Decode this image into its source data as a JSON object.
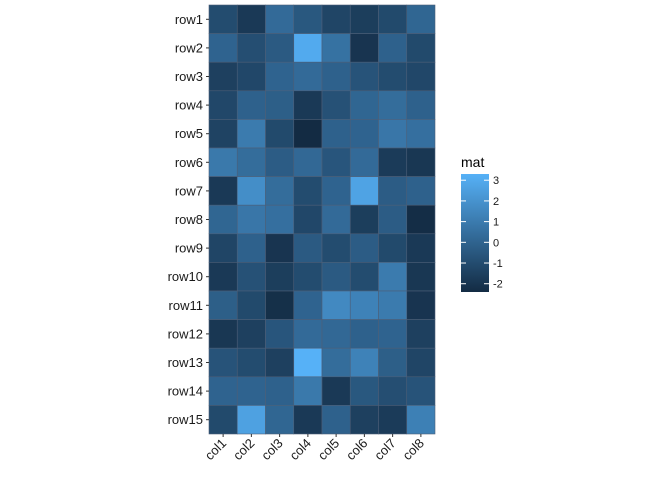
{
  "chart_data": {
    "type": "heatmap",
    "rows": [
      "row1",
      "row2",
      "row3",
      "row4",
      "row5",
      "row6",
      "row7",
      "row8",
      "row9",
      "row10",
      "row11",
      "row12",
      "row13",
      "row14",
      "row15"
    ],
    "columns": [
      "col1",
      "col2",
      "col3",
      "col4",
      "col5",
      "col6",
      "col7",
      "col8"
    ],
    "values": [
      [
        -1.0,
        -1.8,
        0.3,
        -0.5,
        -1.3,
        -1.6,
        -1.1,
        0.1
      ],
      [
        0.0,
        -0.9,
        -0.4,
        3.0,
        0.6,
        -2.0,
        -0.1,
        -1.1
      ],
      [
        -1.5,
        -1.2,
        0.0,
        0.3,
        -0.1,
        -0.7,
        -1.0,
        -1.2
      ],
      [
        -1.2,
        -0.1,
        -0.2,
        -1.8,
        -0.8,
        0.1,
        0.4,
        -0.1
      ],
      [
        -1.4,
        1.0,
        -1.1,
        -2.4,
        -0.1,
        0.0,
        0.8,
        0.5
      ],
      [
        0.9,
        0.4,
        -0.3,
        0.2,
        -0.6,
        0.3,
        -1.7,
        -1.9
      ],
      [
        -1.8,
        1.8,
        0.4,
        -1.0,
        0.0,
        2.7,
        -0.3,
        -0.1
      ],
      [
        0.1,
        0.8,
        0.5,
        -1.2,
        0.3,
        -1.6,
        -0.3,
        -2.3
      ],
      [
        -1.3,
        -0.1,
        -2.0,
        -0.4,
        -1.0,
        -0.3,
        -1.1,
        -1.8
      ],
      [
        -1.8,
        -0.8,
        -1.6,
        -1.0,
        -0.4,
        -1.0,
        1.0,
        -1.9
      ],
      [
        -0.2,
        -1.1,
        -2.2,
        0.0,
        1.6,
        1.3,
        1.0,
        -2.0
      ],
      [
        -1.9,
        -1.5,
        -0.6,
        0.3,
        0.2,
        -0.1,
        0.0,
        -1.5
      ],
      [
        -0.7,
        -1.0,
        -1.5,
        3.3,
        0.4,
        1.3,
        -0.2,
        -1.3
      ],
      [
        0.0,
        0.0,
        -0.1,
        0.9,
        -1.8,
        -0.5,
        -0.9,
        -0.7
      ],
      [
        -1.1,
        2.6,
        0.1,
        -1.8,
        -0.1,
        -1.5,
        -1.7,
        1.2
      ]
    ],
    "legend": {
      "title": "mat",
      "ticks": [
        "3",
        "2",
        "1",
        "0",
        "-1",
        "-2"
      ],
      "tick_values": [
        3,
        2,
        1,
        0,
        -1,
        -2
      ],
      "range": [
        -2.4,
        3.3
      ],
      "placement": "right"
    },
    "colors": {
      "low": "#132B43",
      "high": "#56B1F7",
      "grid_line": "#4d5f78",
      "text": "#1a1a1a"
    },
    "x_label_rotation": "45",
    "title": "",
    "xlabel": "",
    "ylabel": ""
  }
}
